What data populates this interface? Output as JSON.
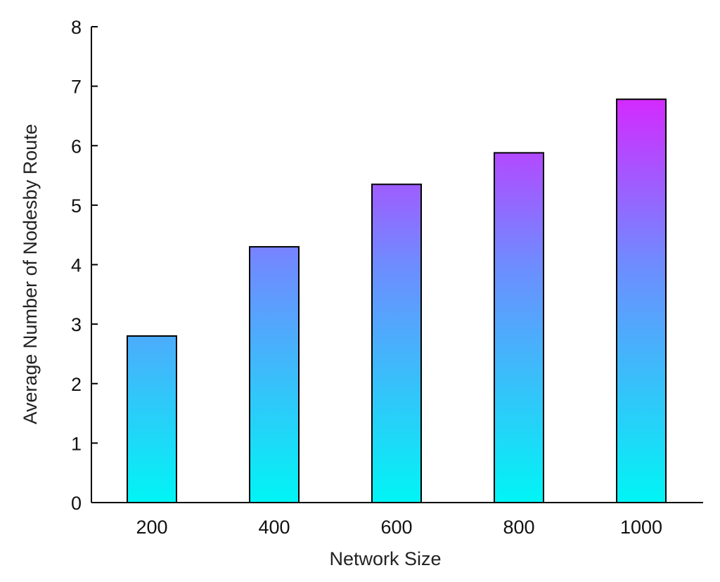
{
  "chart_data": {
    "type": "bar",
    "title": "",
    "xlabel": "Network Size",
    "ylabel": "Average Number of Nodesby Route",
    "categories": [
      "200",
      "400",
      "600",
      "800",
      "1000"
    ],
    "values": [
      2.8,
      4.3,
      5.35,
      5.88,
      6.78
    ],
    "ylim": [
      0,
      8
    ],
    "yticks": [
      0,
      1,
      2,
      3,
      4,
      5,
      6,
      7,
      8
    ],
    "grid": false,
    "legend": "none",
    "colors": {
      "gradient_bottom": "#00f5f5",
      "gradient_mid": "#6e8cff",
      "gradient_top": "#ff00ff",
      "bar_stroke": "#000000",
      "axis": "#000000"
    }
  }
}
